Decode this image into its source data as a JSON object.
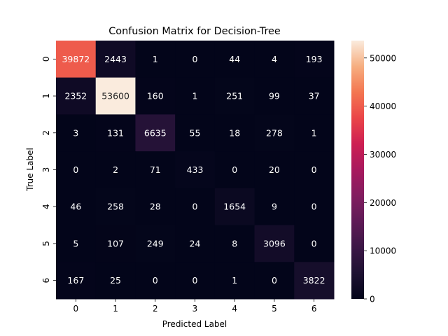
{
  "chart_data": {
    "type": "heatmap",
    "title": "Confusion Matrix for Decision-Tree",
    "xlabel": "Predicted Label",
    "ylabel": "True Label",
    "x_categories": [
      "0",
      "1",
      "2",
      "3",
      "4",
      "5",
      "6"
    ],
    "y_categories": [
      "0",
      "1",
      "2",
      "3",
      "4",
      "5",
      "6"
    ],
    "values": [
      [
        39872,
        2443,
        1,
        0,
        44,
        4,
        193
      ],
      [
        2352,
        53600,
        160,
        1,
        251,
        99,
        37
      ],
      [
        3,
        131,
        6635,
        55,
        18,
        278,
        1
      ],
      [
        0,
        2,
        71,
        433,
        0,
        20,
        0
      ],
      [
        46,
        258,
        28,
        0,
        1654,
        9,
        0
      ],
      [
        5,
        107,
        249,
        24,
        8,
        3096,
        0
      ],
      [
        167,
        25,
        0,
        0,
        1,
        0,
        3822
      ]
    ],
    "colorbar": {
      "min": 0,
      "max": 53600,
      "ticks": [
        0,
        10000,
        20000,
        30000,
        40000,
        50000
      ],
      "colormap": "rocket"
    },
    "annotations": true
  }
}
